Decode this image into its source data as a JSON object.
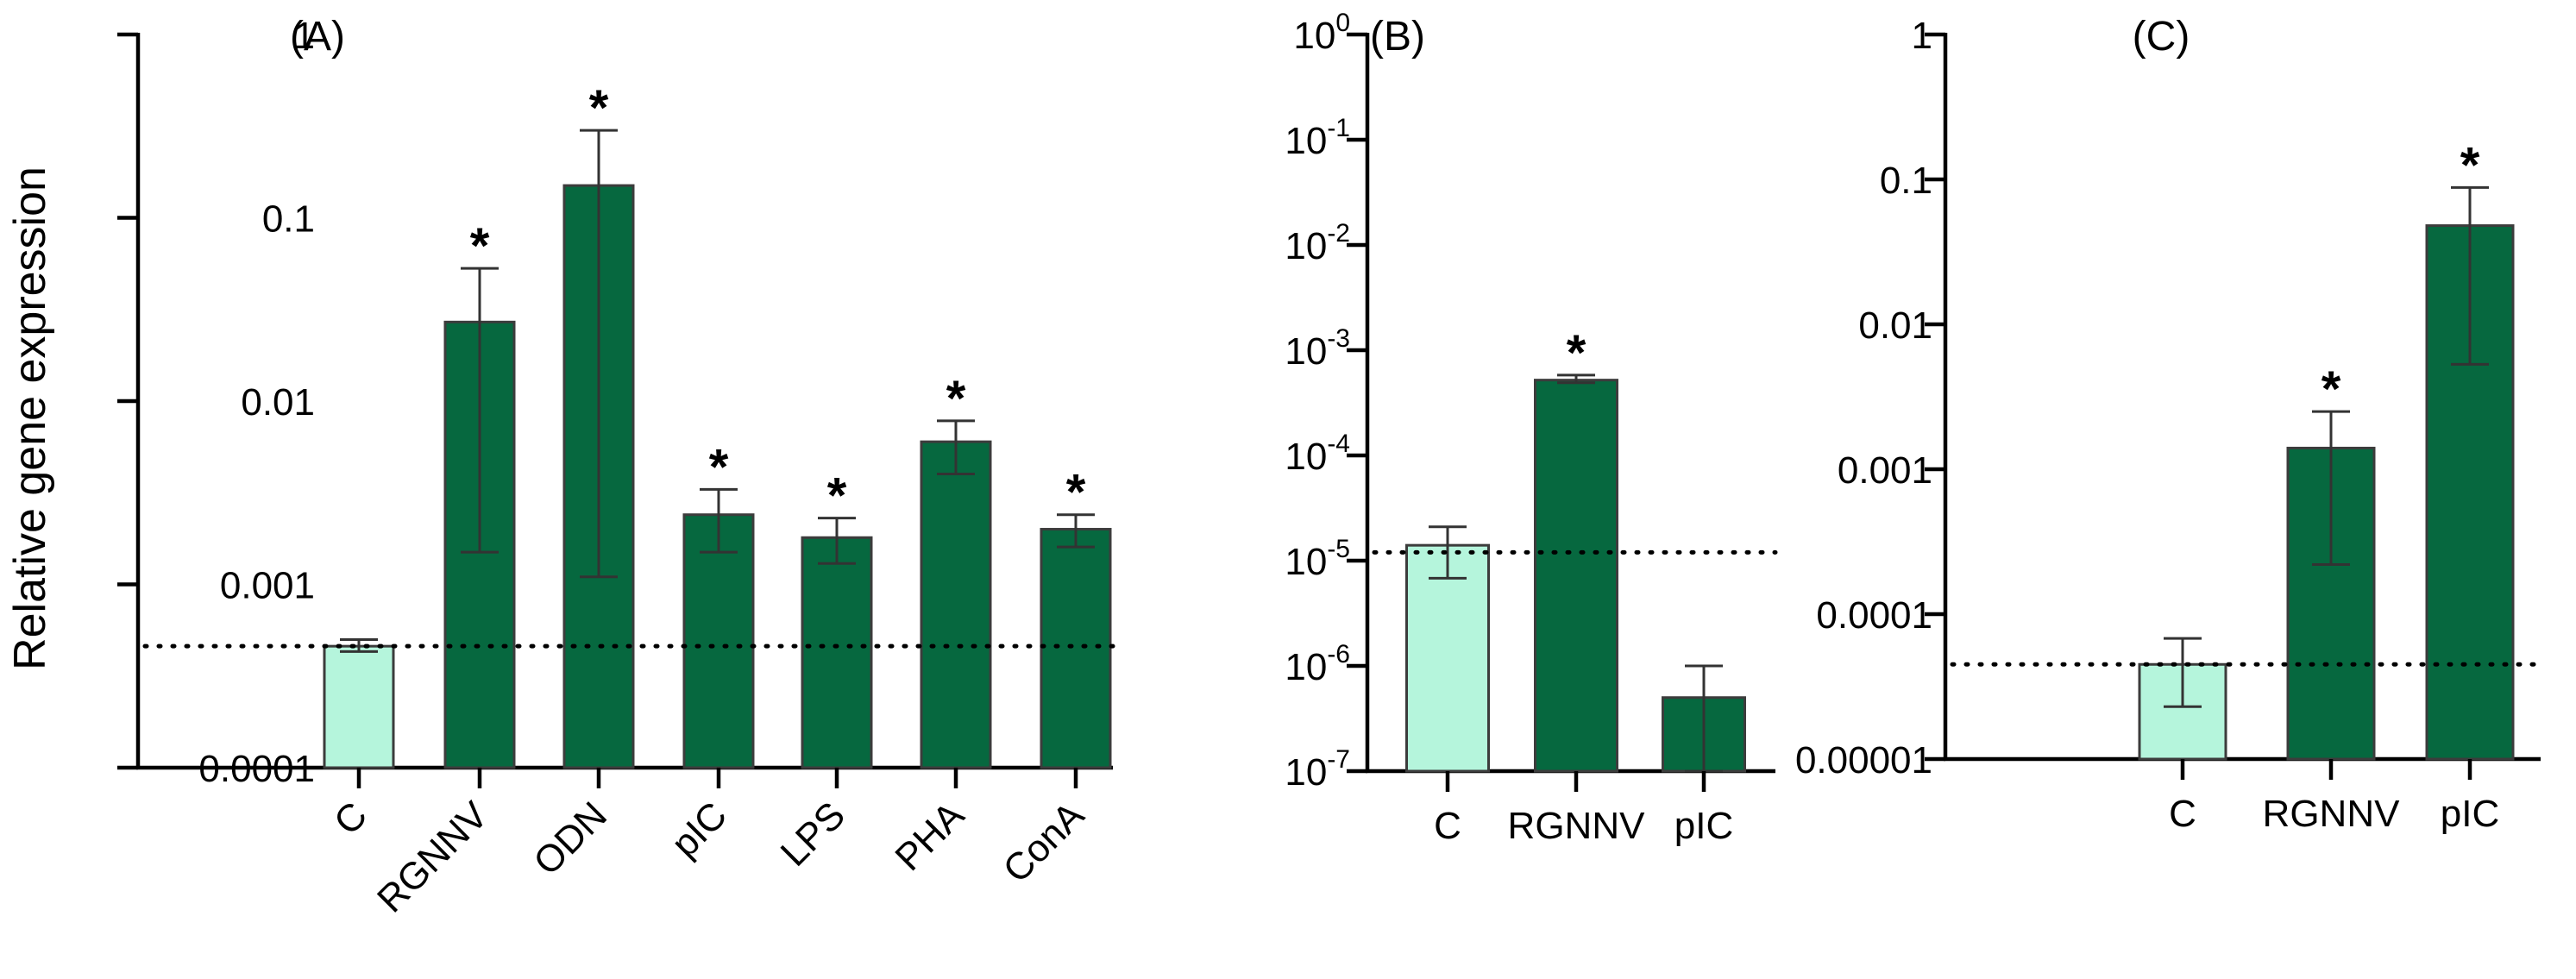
{
  "ylabel": "Relative gene expression",
  "colors": {
    "control": "#b5f5dc",
    "treated": "#06683f",
    "bar_edge": "#3c3c3c",
    "error_bar": "#333333"
  },
  "chart_data": [
    {
      "type": "bar",
      "title": "(A)",
      "ylabel": "Relative gene expression",
      "yscale": "log",
      "ylim": [
        0.0001,
        1
      ],
      "ytick_style": "decimal",
      "ytick_values": [
        0.0001,
        0.001,
        0.01,
        0.1,
        1
      ],
      "ytick_labels": [
        "0.0001",
        "0.001",
        "0.01",
        "0.1",
        "1"
      ],
      "categories": [
        "C",
        "RGNNV",
        "ODN",
        "pIC",
        "LPS",
        "PHA",
        "ConA"
      ],
      "values": [
        0.00046,
        0.027,
        0.15,
        0.0024,
        0.0018,
        0.006,
        0.002
      ],
      "err_low": [
        0.00043,
        0.0015,
        0.0011,
        0.0015,
        0.0013,
        0.004,
        0.0016
      ],
      "err_high": [
        0.0005,
        0.053,
        0.3,
        0.0033,
        0.0023,
        0.0078,
        0.0024
      ],
      "significant": [
        false,
        true,
        true,
        true,
        true,
        true,
        true
      ],
      "sig_marker": "*",
      "reference_line": 0.00046,
      "xtick_rotation": -45
    },
    {
      "type": "bar",
      "title": "(B)",
      "yscale": "log",
      "ylim": [
        1e-07,
        1
      ],
      "ytick_style": "power",
      "ytick_values": [
        1e-07,
        1e-06,
        1e-05,
        0.0001,
        0.001,
        0.01,
        0.1,
        1
      ],
      "ytick_bases": [
        "10",
        "10",
        "10",
        "10",
        "10",
        "10",
        "10",
        "10"
      ],
      "ytick_exponents": [
        "-7",
        "-6",
        "-5",
        "-4",
        "-3",
        "-2",
        "-1",
        "0"
      ],
      "categories": [
        "C",
        "RGNNV",
        "pIC"
      ],
      "values": [
        1.4e-05,
        0.00052,
        5e-07
      ],
      "err_low": [
        6.8e-06,
        0.00049,
        1e-07
      ],
      "err_high": [
        2.1e-05,
        0.00058,
        1e-06
      ],
      "significant": [
        false,
        true,
        false
      ],
      "sig_marker": "*",
      "reference_line": 1.2e-05,
      "xtick_rotation": 0
    },
    {
      "type": "bar",
      "title": "(C)",
      "yscale": "log",
      "ylim": [
        1e-05,
        1
      ],
      "ytick_style": "decimal",
      "ytick_values": [
        1e-05,
        0.0001,
        0.001,
        0.01,
        0.1,
        1
      ],
      "ytick_labels": [
        "0.00001",
        "0.0001",
        "0.001",
        "0.01",
        "0.1",
        "1"
      ],
      "categories": [
        "C",
        "RGNNV",
        "pIC"
      ],
      "values": [
        4.5e-05,
        0.0014,
        0.048
      ],
      "err_low": [
        2.3e-05,
        0.00022,
        0.0053
      ],
      "err_high": [
        6.8e-05,
        0.0025,
        0.088
      ],
      "significant": [
        false,
        true,
        true
      ],
      "sig_marker": "*",
      "reference_line": 4.5e-05,
      "xtick_rotation": 0
    }
  ]
}
